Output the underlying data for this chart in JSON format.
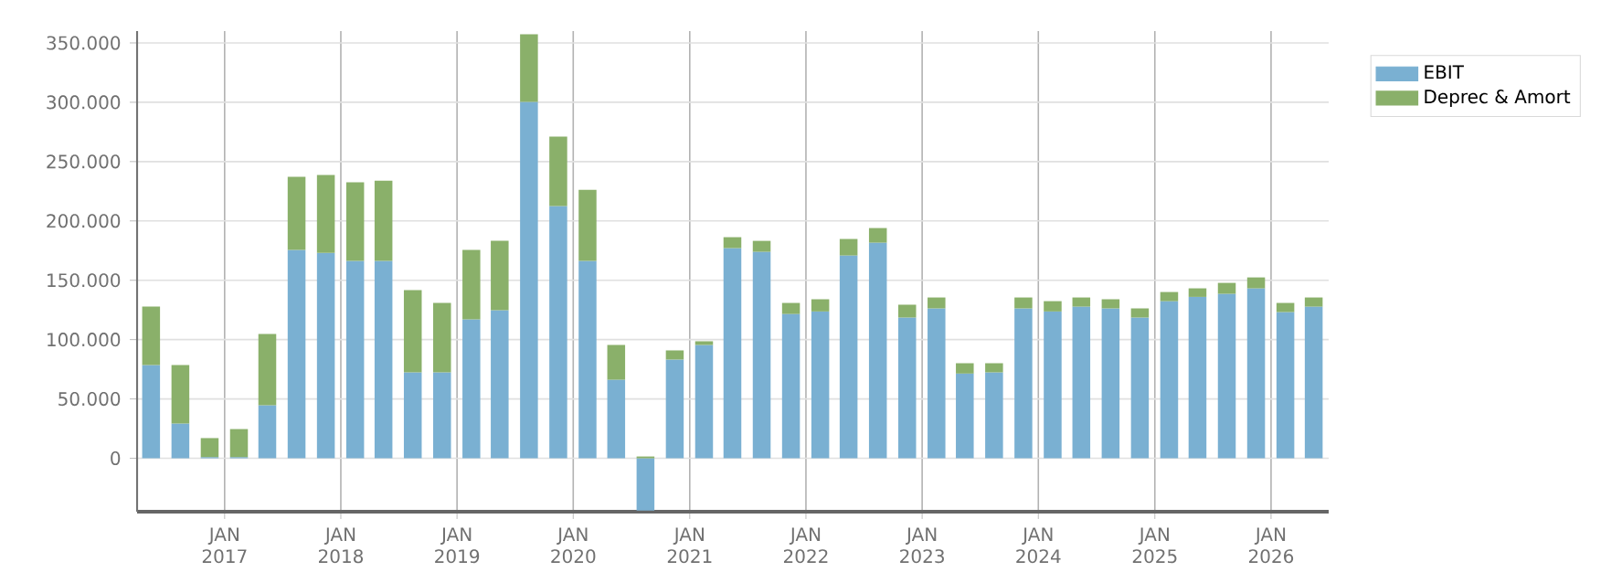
{
  "chart_data": {
    "type": "bar",
    "stacked": true,
    "x": [
      "2016-05-15",
      "2016-08-15",
      "2016-11-15",
      "2017-02-15",
      "2017-05-15",
      "2017-08-15",
      "2017-11-15",
      "2018-02-15",
      "2018-05-15",
      "2018-08-15",
      "2018-11-15",
      "2019-02-15",
      "2019-05-15",
      "2019-08-15",
      "2019-11-15",
      "2020-02-15",
      "2020-05-15",
      "2020-08-15",
      "2020-11-15",
      "2021-02-15",
      "2021-05-15",
      "2021-08-15",
      "2021-11-15",
      "2022-02-15",
      "2022-05-15",
      "2022-08-15",
      "2022-11-15",
      "2023-02-15",
      "2023-05-15",
      "2023-08-15",
      "2023-11-15",
      "2024-02-15",
      "2024-05-15",
      "2024-08-15",
      "2024-11-15",
      "2025-02-15",
      "2025-05-15",
      "2025-08-15",
      "2025-11-15",
      "2026-02-15",
      "2026-05-15"
    ],
    "series": [
      {
        "name": "EBIT",
        "color": "#7ab0d2",
        "values": [
          78500,
          29300,
          1000,
          1000,
          44700,
          175500,
          173000,
          166300,
          166300,
          72400,
          72400,
          117000,
          124700,
          300300,
          212500,
          166300,
          66200,
          -44000,
          83200,
          95500,
          177100,
          174000,
          121600,
          123700,
          170900,
          181700,
          118600,
          126300,
          71400,
          72400,
          126300,
          123700,
          127800,
          126300,
          118600,
          132400,
          136000,
          138600,
          143200,
          123200,
          127800
        ]
      },
      {
        "name": "Deprec & Amort",
        "color": "#8ab06a",
        "values": [
          49300,
          49200,
          16000,
          23600,
          60000,
          61600,
          65700,
          66200,
          67700,
          69300,
          58500,
          58500,
          58500,
          57000,
          58500,
          60000,
          29300,
          1500,
          7700,
          3100,
          9200,
          9200,
          9300,
          10300,
          13900,
          12300,
          10800,
          9200,
          8700,
          7700,
          9200,
          8700,
          7700,
          7700,
          7700,
          7700,
          7200,
          9200,
          9200,
          7700,
          7700
        ]
      }
    ],
    "xlim": [
      "2016-04-01",
      "2026-07-01"
    ],
    "xticks": [
      {
        "value": "2017-01-01",
        "label": "JAN 2017"
      },
      {
        "value": "2018-01-01",
        "label": "JAN 2018"
      },
      {
        "value": "2019-01-01",
        "label": "JAN 2019"
      },
      {
        "value": "2020-01-01",
        "label": "JAN 2020"
      },
      {
        "value": "2021-01-01",
        "label": "JAN 2021"
      },
      {
        "value": "2022-01-01",
        "label": "JAN 2022"
      },
      {
        "value": "2023-01-01",
        "label": "JAN 2023"
      },
      {
        "value": "2024-01-01",
        "label": "JAN 2024"
      },
      {
        "value": "2025-01-01",
        "label": "JAN 2025"
      },
      {
        "value": "2026-01-01",
        "label": "JAN 2026"
      }
    ],
    "ylim": [
      -45000,
      360000
    ],
    "yticks": [
      0,
      {
        "value": 50000,
        "label": "50.000"
      },
      {
        "value": 100000,
        "label": "100.000"
      },
      {
        "value": 150000,
        "label": "150.000"
      },
      {
        "value": 200000,
        "label": "200.000"
      },
      {
        "value": 250000,
        "label": "250.000"
      },
      {
        "value": 300000,
        "label": "300.000"
      },
      {
        "value": 350000,
        "label": "350.000"
      }
    ],
    "grid": true,
    "legend": "top right"
  }
}
